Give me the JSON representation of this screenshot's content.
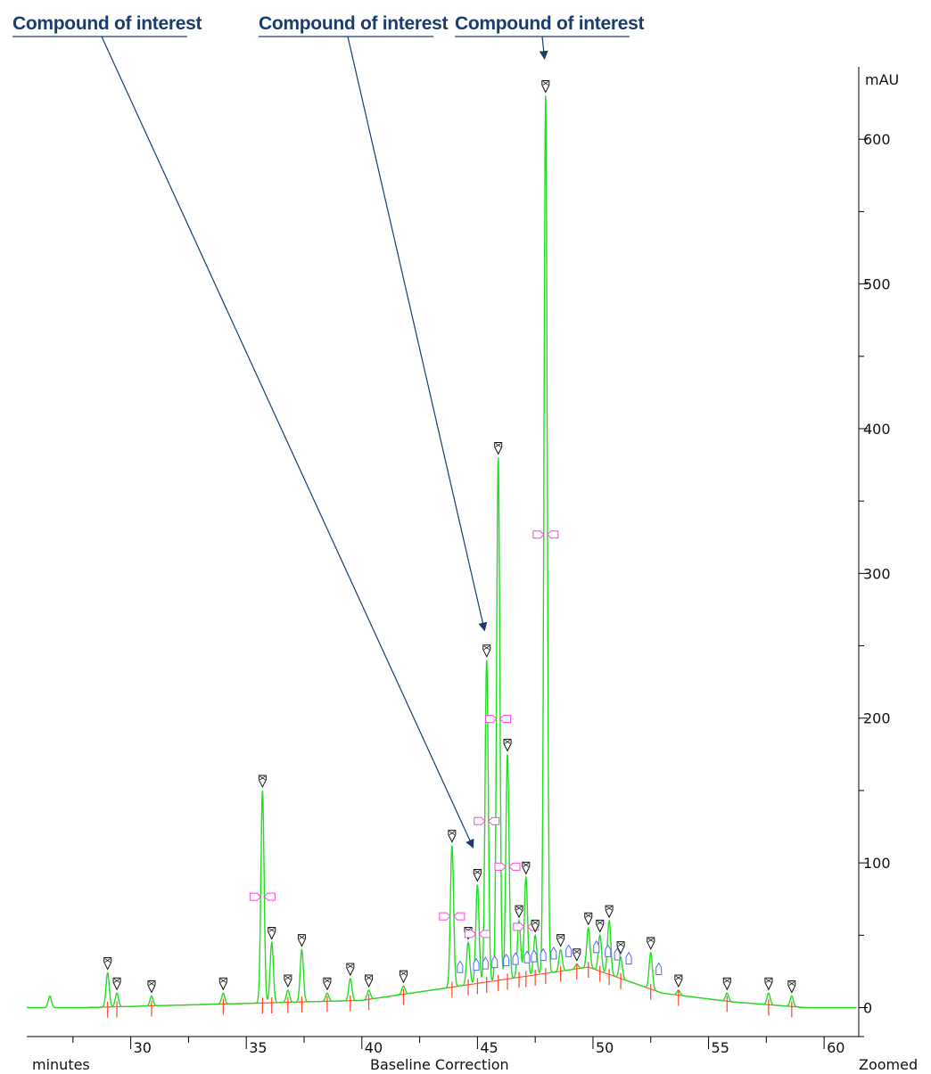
{
  "callouts": [
    {
      "label": "Compound of interest",
      "target_x": 44.8,
      "target_y": 100
    },
    {
      "label": "Compound of interest",
      "target_x": 45.3,
      "target_y": 250
    },
    {
      "label": "Compound of interest",
      "target_x": 47.9,
      "target_y": 645
    }
  ],
  "chart_data": {
    "type": "line",
    "title": "",
    "xlabel": "minutes",
    "x_center_label": "Baseline Correction",
    "x_right_label": "Zoomed",
    "ylabel": "mAU",
    "xlim": [
      25.5,
      61.5
    ],
    "ylim": [
      -20,
      650
    ],
    "x_ticks": [
      30,
      35,
      40,
      45,
      50,
      55,
      60
    ],
    "y_ticks": [
      0,
      100,
      200,
      300,
      400,
      500,
      600
    ],
    "line_color": "#22dd22",
    "baseline_color": "#ff5533",
    "callout_color": "#1a3d6e",
    "peaks": [
      {
        "x": 26.5,
        "y": 8
      },
      {
        "x": 29.0,
        "y": 24
      },
      {
        "x": 29.4,
        "y": 10
      },
      {
        "x": 30.9,
        "y": 8
      },
      {
        "x": 34.0,
        "y": 10
      },
      {
        "x": 35.7,
        "y": 150
      },
      {
        "x": 36.1,
        "y": 45
      },
      {
        "x": 36.8,
        "y": 12
      },
      {
        "x": 37.4,
        "y": 40
      },
      {
        "x": 38.5,
        "y": 10
      },
      {
        "x": 39.5,
        "y": 20
      },
      {
        "x": 40.3,
        "y": 12
      },
      {
        "x": 41.8,
        "y": 15
      },
      {
        "x": 43.9,
        "y": 112
      },
      {
        "x": 44.6,
        "y": 45
      },
      {
        "x": 45.0,
        "y": 85
      },
      {
        "x": 45.4,
        "y": 240
      },
      {
        "x": 45.9,
        "y": 380
      },
      {
        "x": 46.3,
        "y": 175
      },
      {
        "x": 46.8,
        "y": 60
      },
      {
        "x": 47.1,
        "y": 90
      },
      {
        "x": 47.5,
        "y": 50
      },
      {
        "x": 47.95,
        "y": 630
      },
      {
        "x": 48.6,
        "y": 40
      },
      {
        "x": 49.3,
        "y": 30
      },
      {
        "x": 49.8,
        "y": 55
      },
      {
        "x": 50.3,
        "y": 50
      },
      {
        "x": 50.7,
        "y": 60
      },
      {
        "x": 51.2,
        "y": 35
      },
      {
        "x": 52.5,
        "y": 38
      },
      {
        "x": 53.7,
        "y": 12
      },
      {
        "x": 55.8,
        "y": 10
      },
      {
        "x": 57.6,
        "y": 10
      },
      {
        "x": 58.6,
        "y": 8
      }
    ],
    "baseline": [
      {
        "x": 28.0,
        "y": 0
      },
      {
        "x": 40.0,
        "y": 5
      },
      {
        "x": 49.8,
        "y": 28
      },
      {
        "x": 53.0,
        "y": 10
      },
      {
        "x": 56.0,
        "y": 4
      },
      {
        "x": 59.2,
        "y": 0
      }
    ]
  }
}
